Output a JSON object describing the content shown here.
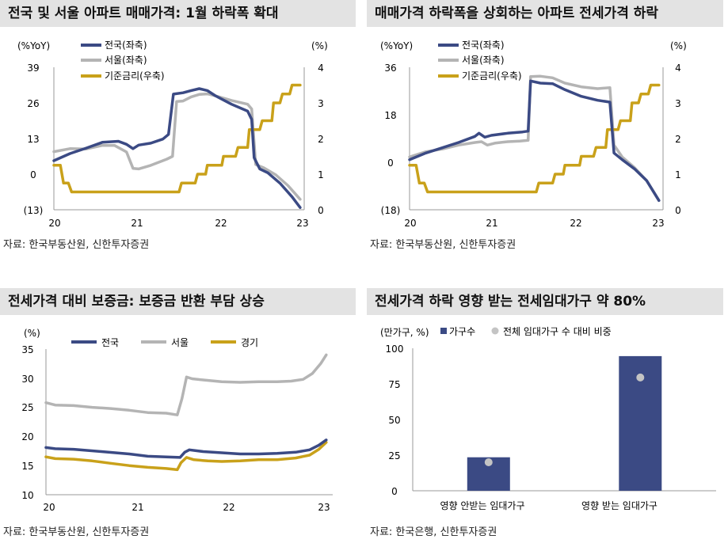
{
  "colors": {
    "nation": "#3b4a84",
    "seoul": "#b4b4b4",
    "rate": "#c9a11a",
    "gyeonggi": "#c9a11a",
    "bar": "#3b4a84",
    "dot": "#c4c4c4",
    "title_bg": "#e3e3e3"
  },
  "panels": [
    {
      "title": "전국 및 서울 아파트 매매가격: 1월 하락폭 확대",
      "source": "자료: 한국부동산원, 신한투자증권"
    },
    {
      "title": "매매가격 하락폭을 상회하는 아파트 전세가격 하락",
      "source": "자료: 한국부동산원, 신한투자증권"
    },
    {
      "title": "전세가격 대비 보증금: 보증금 반환 부담 상승",
      "source": "자료: 한국부동산원, 신한투자증권"
    },
    {
      "title": "전세가격 하락 영향 받는 전세임대가구 약 80%",
      "source": "자료: 한국은행, 신한투자증권"
    }
  ],
  "chart_data": [
    {
      "type": "line",
      "ylabel_left": "(%YoY)",
      "ylabel_right": "(%)",
      "y_ticks_left": [
        "39",
        "26",
        "13",
        "0",
        "(13)"
      ],
      "ylim_left": [
        -13,
        39
      ],
      "y_ticks_right": [
        "4",
        "3",
        "2",
        "1",
        "0"
      ],
      "ylim_right": [
        0,
        4
      ],
      "x_ticks": [
        "20",
        "21",
        "22",
        "23"
      ],
      "xlim": [
        20,
        23.1
      ],
      "series": [
        {
          "name": "전국(좌축)",
          "axis": "left",
          "points": [
            [
              20.0,
              4.9
            ],
            [
              20.2,
              7.5
            ],
            [
              20.4,
              9.5
            ],
            [
              20.6,
              11.6
            ],
            [
              20.8,
              12
            ],
            [
              20.9,
              10.9
            ],
            [
              20.98,
              9.3
            ],
            [
              21.05,
              10.6
            ],
            [
              21.2,
              11.3
            ],
            [
              21.35,
              12.8
            ],
            [
              21.42,
              14.5
            ],
            [
              21.48,
              29.2
            ],
            [
              21.6,
              29.7
            ],
            [
              21.7,
              30.5
            ],
            [
              21.8,
              31.2
            ],
            [
              21.9,
              30.5
            ],
            [
              22.0,
              28.6
            ],
            [
              22.2,
              25.5
            ],
            [
              22.4,
              23.0
            ],
            [
              22.45,
              20.0
            ],
            [
              22.48,
              6
            ],
            [
              22.55,
              1.9
            ],
            [
              22.65,
              0.5
            ],
            [
              22.8,
              -3.3
            ],
            [
              22.95,
              -8.3
            ],
            [
              23.05,
              -12.2
            ]
          ]
        },
        {
          "name": "서울(좌축)",
          "axis": "left",
          "points": [
            [
              20.0,
              8.2
            ],
            [
              20.2,
              9.3
            ],
            [
              20.4,
              9.2
            ],
            [
              20.6,
              10.5
            ],
            [
              20.75,
              10.5
            ],
            [
              20.9,
              8.1
            ],
            [
              20.98,
              2.1
            ],
            [
              21.05,
              1.9
            ],
            [
              21.2,
              3.2
            ],
            [
              21.4,
              5.5
            ],
            [
              21.47,
              6.5
            ],
            [
              21.52,
              26.5
            ],
            [
              21.6,
              26.7
            ],
            [
              21.7,
              28.2
            ],
            [
              21.8,
              29.1
            ],
            [
              21.9,
              29.3
            ],
            [
              22.0,
              28.6
            ],
            [
              22.2,
              26.9
            ],
            [
              22.4,
              25.5
            ],
            [
              22.45,
              23.8
            ],
            [
              22.5,
              3.5
            ],
            [
              22.6,
              2.3
            ],
            [
              22.75,
              -0.3
            ],
            [
              22.9,
              -4.2
            ],
            [
              23.05,
              -9.2
            ]
          ]
        },
        {
          "name": "기준금리(우축)",
          "axis": "right",
          "points": [
            [
              20.0,
              1.25
            ],
            [
              20.08,
              1.25
            ],
            [
              20.12,
              0.75
            ],
            [
              20.18,
              0.75
            ],
            [
              20.22,
              0.5
            ],
            [
              21.55,
              0.5
            ],
            [
              21.58,
              0.75
            ],
            [
              21.75,
              0.75
            ],
            [
              21.78,
              1.0
            ],
            [
              21.88,
              1.0
            ],
            [
              21.9,
              1.25
            ],
            [
              22.08,
              1.25
            ],
            [
              22.1,
              1.5
            ],
            [
              22.25,
              1.5
            ],
            [
              22.28,
              1.75
            ],
            [
              22.4,
              1.75
            ],
            [
              22.42,
              2.25
            ],
            [
              22.55,
              2.25
            ],
            [
              22.58,
              2.5
            ],
            [
              22.7,
              2.5
            ],
            [
              22.72,
              3.0
            ],
            [
              22.8,
              3.0
            ],
            [
              22.83,
              3.25
            ],
            [
              22.92,
              3.25
            ],
            [
              22.95,
              3.5
            ],
            [
              23.05,
              3.5
            ]
          ]
        }
      ]
    },
    {
      "type": "line",
      "ylabel_left": "(%YoY)",
      "ylabel_right": "(%)",
      "y_ticks_left": [
        "36",
        "18",
        "0",
        "(18)"
      ],
      "ylim_left": [
        -18,
        36
      ],
      "y_ticks_right": [
        "4",
        "3",
        "2",
        "1",
        "0"
      ],
      "ylim_right": [
        0,
        4
      ],
      "x_ticks": [
        "20",
        "21",
        "22",
        "23"
      ],
      "xlim": [
        20,
        23.1
      ],
      "series": [
        {
          "name": "전국(좌축)",
          "axis": "left",
          "points": [
            [
              20.0,
              1
            ],
            [
              20.2,
              3.5
            ],
            [
              20.4,
              5.5
            ],
            [
              20.6,
              7.5
            ],
            [
              20.8,
              9.8
            ],
            [
              20.85,
              11.0
            ],
            [
              20.92,
              9.5
            ],
            [
              21.0,
              10.2
            ],
            [
              21.2,
              11.0
            ],
            [
              21.38,
              11.5
            ],
            [
              21.45,
              11.8
            ],
            [
              21.48,
              30.8
            ],
            [
              21.6,
              30
            ],
            [
              21.75,
              29.8
            ],
            [
              21.9,
              27.5
            ],
            [
              22.1,
              25.0
            ],
            [
              22.3,
              23.5
            ],
            [
              22.45,
              22.8
            ],
            [
              22.5,
              3.5
            ],
            [
              22.6,
              1.0
            ],
            [
              22.75,
              -2.5
            ],
            [
              22.9,
              -7.0
            ],
            [
              23.05,
              -14.5
            ]
          ]
        },
        {
          "name": "서울(좌축)",
          "axis": "left",
          "points": [
            [
              20.0,
              2
            ],
            [
              20.2,
              4.0
            ],
            [
              20.4,
              5.0
            ],
            [
              20.6,
              6.5
            ],
            [
              20.8,
              7.5
            ],
            [
              20.88,
              7.8
            ],
            [
              20.95,
              6.5
            ],
            [
              21.05,
              7.3
            ],
            [
              21.2,
              7.8
            ],
            [
              21.35,
              8.0
            ],
            [
              21.45,
              8.3
            ],
            [
              21.48,
              32.5
            ],
            [
              21.6,
              32.6
            ],
            [
              21.75,
              32.0
            ],
            [
              21.9,
              30.0
            ],
            [
              22.1,
              28.6
            ],
            [
              22.3,
              27.9
            ],
            [
              22.45,
              28.3
            ],
            [
              22.5,
              6.5
            ],
            [
              22.6,
              2.0
            ],
            [
              22.75,
              -2.0
            ],
            [
              22.9,
              -7.0
            ],
            [
              23.05,
              -14.5
            ]
          ]
        },
        {
          "name": "기준금리(우축)",
          "axis": "right",
          "points": [
            [
              20.0,
              1.25
            ],
            [
              20.08,
              1.25
            ],
            [
              20.12,
              0.75
            ],
            [
              20.18,
              0.75
            ],
            [
              20.22,
              0.5
            ],
            [
              21.55,
              0.5
            ],
            [
              21.58,
              0.75
            ],
            [
              21.75,
              0.75
            ],
            [
              21.78,
              1.0
            ],
            [
              21.88,
              1.0
            ],
            [
              21.9,
              1.25
            ],
            [
              22.08,
              1.25
            ],
            [
              22.1,
              1.5
            ],
            [
              22.25,
              1.5
            ],
            [
              22.28,
              1.75
            ],
            [
              22.4,
              1.75
            ],
            [
              22.42,
              2.25
            ],
            [
              22.55,
              2.25
            ],
            [
              22.58,
              2.5
            ],
            [
              22.7,
              2.5
            ],
            [
              22.72,
              3.0
            ],
            [
              22.8,
              3.0
            ],
            [
              22.83,
              3.25
            ],
            [
              22.92,
              3.25
            ],
            [
              22.95,
              3.5
            ],
            [
              23.05,
              3.5
            ]
          ]
        }
      ]
    },
    {
      "type": "line",
      "ylabel_left": "(%)",
      "y_ticks_left": [
        "35",
        "30",
        "25",
        "20",
        "15",
        "10"
      ],
      "ylim_left": [
        10,
        35
      ],
      "x_ticks": [
        "20",
        "21",
        "22",
        "23"
      ],
      "xlim": [
        20,
        23.1
      ],
      "series": [
        {
          "name": "전국",
          "points": [
            [
              20.0,
              18.1
            ],
            [
              20.1,
              17.9
            ],
            [
              20.3,
              17.8
            ],
            [
              20.6,
              17.4
            ],
            [
              20.9,
              17.0
            ],
            [
              21.1,
              16.6
            ],
            [
              21.3,
              16.5
            ],
            [
              21.45,
              16.4
            ],
            [
              21.5,
              17.3
            ],
            [
              21.55,
              17.7
            ],
            [
              21.7,
              17.4
            ],
            [
              21.9,
              17.2
            ],
            [
              22.1,
              17.0
            ],
            [
              22.3,
              17.0
            ],
            [
              22.5,
              17.1
            ],
            [
              22.7,
              17.3
            ],
            [
              22.85,
              17.7
            ],
            [
              22.95,
              18.5
            ],
            [
              23.03,
              19.4
            ]
          ]
        },
        {
          "name": "서울",
          "points": [
            [
              20.0,
              25.8
            ],
            [
              20.1,
              25.4
            ],
            [
              20.3,
              25.3
            ],
            [
              20.5,
              25.0
            ],
            [
              20.7,
              24.8
            ],
            [
              20.9,
              24.5
            ],
            [
              21.1,
              24.1
            ],
            [
              21.3,
              24.0
            ],
            [
              21.42,
              23.7
            ],
            [
              21.47,
              26.5
            ],
            [
              21.52,
              30.2
            ],
            [
              21.58,
              29.9
            ],
            [
              21.7,
              29.7
            ],
            [
              21.9,
              29.4
            ],
            [
              22.1,
              29.3
            ],
            [
              22.3,
              29.4
            ],
            [
              22.5,
              29.4
            ],
            [
              22.65,
              29.5
            ],
            [
              22.78,
              29.8
            ],
            [
              22.88,
              30.8
            ],
            [
              22.97,
              32.5
            ],
            [
              23.03,
              34.0
            ]
          ]
        },
        {
          "name": "경기",
          "points": [
            [
              20.0,
              16.5
            ],
            [
              20.1,
              16.2
            ],
            [
              20.3,
              16.1
            ],
            [
              20.5,
              15.8
            ],
            [
              20.7,
              15.4
            ],
            [
              20.9,
              15.0
            ],
            [
              21.1,
              14.7
            ],
            [
              21.3,
              14.5
            ],
            [
              21.42,
              14.3
            ],
            [
              21.46,
              15.5
            ],
            [
              21.52,
              16.4
            ],
            [
              21.6,
              16.0
            ],
            [
              21.75,
              15.8
            ],
            [
              21.9,
              15.7
            ],
            [
              22.1,
              15.8
            ],
            [
              22.3,
              16.0
            ],
            [
              22.5,
              16.0
            ],
            [
              22.7,
              16.3
            ],
            [
              22.85,
              16.8
            ],
            [
              22.95,
              17.8
            ],
            [
              23.03,
              19.0
            ]
          ]
        }
      ]
    },
    {
      "type": "bar",
      "ylabel": "(만가구, %)",
      "y_ticks": [
        "100",
        "75",
        "50",
        "25",
        "0"
      ],
      "ylim": [
        0,
        100
      ],
      "categories": [
        "영향 안받는 임대가구",
        "영향 받는 임대가구"
      ],
      "series": [
        {
          "name": "가구수",
          "values": [
            23.5,
            94.5
          ]
        },
        {
          "name": "전체 임대가구 수 대비 비중",
          "values": [
            20,
            79.5
          ]
        }
      ]
    }
  ]
}
